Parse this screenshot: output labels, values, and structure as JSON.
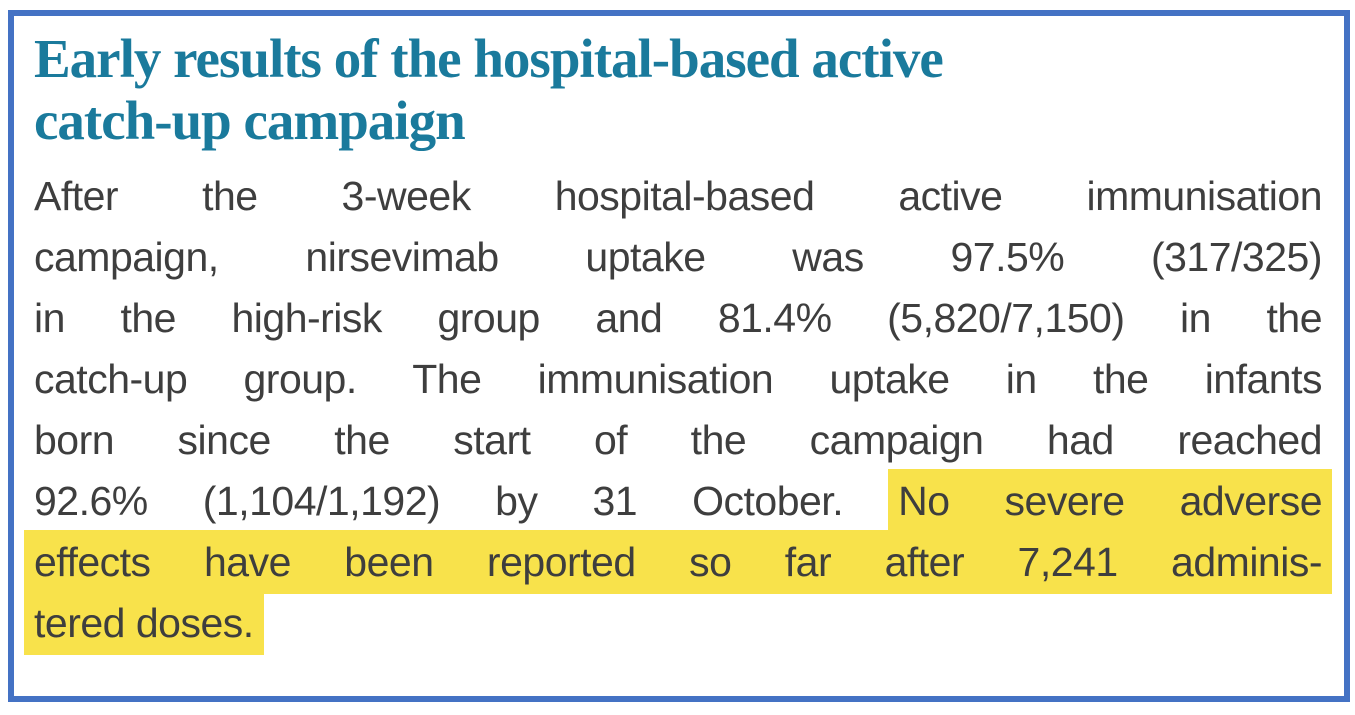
{
  "colors": {
    "border": "#4472c4",
    "heading": "#1a7a9c",
    "body_text": "#3e3e3e",
    "highlight": "#f8e24b",
    "background": "#ffffff"
  },
  "heading": {
    "lines": [
      "Early results of the hospital-based active",
      "catch-up campaign"
    ]
  },
  "paragraph": {
    "full_text": "After the 3-week hospital-based active immunisation campaign, nirsevimab uptake was 97.5% (317/325) in the high-risk group and 81.4% (5,820/7,150) in the catch-up group. The immunisation uptake in the infants born since the start of the campaign had reached 92.6% (1,104/1,192) by 31 October. No severe adverse effects have been reported so far after 7,241 administered doses.",
    "highlighted_text": "No severe adverse effects have been reported so far after 7,241 administered doses.",
    "lines": [
      {
        "justify_last": true,
        "segments": [
          {
            "text": "After the 3-week hospital-based active immunisation",
            "highlight": false
          }
        ]
      },
      {
        "justify_last": true,
        "segments": [
          {
            "text": "campaign, nirsevimab uptake was 97.5% (317/325)",
            "highlight": false
          }
        ]
      },
      {
        "justify_last": true,
        "segments": [
          {
            "text": "in the high-risk group and 81.4% (5,820/7,150) in the",
            "highlight": false
          }
        ]
      },
      {
        "justify_last": true,
        "segments": [
          {
            "text": "catch-up group. The immunisation uptake in the infants",
            "highlight": false
          }
        ]
      },
      {
        "justify_last": true,
        "segments": [
          {
            "text": "born since the start of the campaign had reached",
            "highlight": false
          }
        ]
      },
      {
        "justify_last": true,
        "segments": [
          {
            "text": "92.6% (1,104/1,192) by 31 October. ",
            "highlight": false
          },
          {
            "text": "No severe adverse",
            "highlight": true
          }
        ]
      },
      {
        "justify_last": true,
        "segments": [
          {
            "text": "effects have been reported so far after 7,241 adminis-",
            "highlight": true
          }
        ]
      },
      {
        "justify_last": false,
        "segments": [
          {
            "text": "tered doses.",
            "highlight": true
          }
        ]
      }
    ]
  }
}
